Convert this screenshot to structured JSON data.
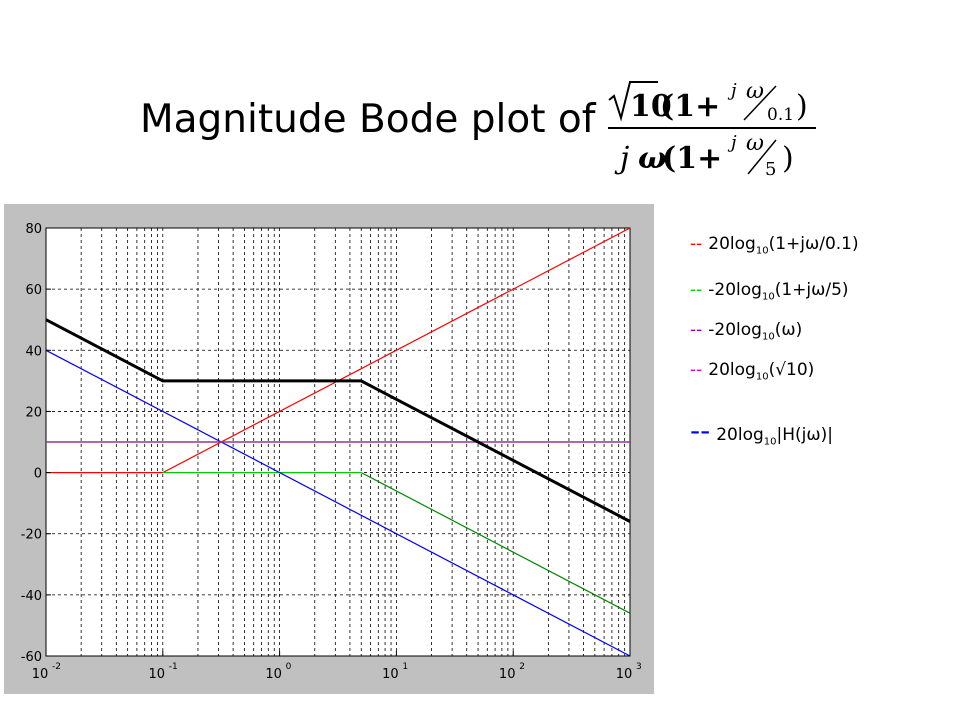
{
  "slide": {
    "title": "Magnitude Bode plot of",
    "formula": {
      "sqrt_arg": "10",
      "num_open": "(1+",
      "num_close": ")",
      "zero_corner": "0.1",
      "den_open": "(1+",
      "den_close": ")",
      "pole_corner": "5",
      "j": "j",
      "omega": "ω"
    }
  },
  "legend": {
    "items": [
      {
        "dash": "--",
        "prefix": "20log",
        "sub": "10",
        "suffix": "(1+jω/0.1)",
        "color": "#ff0000"
      },
      {
        "dash": "--",
        "prefix": "-20log",
        "sub": "10",
        "suffix": "(1+jω/5)",
        "color": "#00cc00"
      },
      {
        "dash": "--",
        "prefix": "-20log",
        "sub": "10",
        "suffix": "(ω)",
        "color": "#9900cc"
      },
      {
        "dash": "--",
        "prefix": "20log",
        "sub": "10",
        "suffix": "(√10)",
        "color": "#cc00cc"
      },
      {
        "dash": "--",
        "prefix": "20log",
        "sub": "10",
        "suffix": "|H(jω)|",
        "color": "#0000ff"
      }
    ]
  },
  "chart_data": {
    "type": "line",
    "x_scale": "log",
    "xlim": [
      0.01,
      1000
    ],
    "ylim": [
      -60,
      80
    ],
    "x_ticks": [
      {
        "base": "10",
        "exp": "-2",
        "value": 0.01
      },
      {
        "base": "10",
        "exp": "-1",
        "value": 0.1
      },
      {
        "base": "10",
        "exp": "0",
        "value": 1
      },
      {
        "base": "10",
        "exp": "1",
        "value": 10
      },
      {
        "base": "10",
        "exp": "2",
        "value": 100
      },
      {
        "base": "10",
        "exp": "3",
        "value": 1000
      }
    ],
    "y_ticks": [
      "-60",
      "-40",
      "-20",
      "0",
      "20",
      "40",
      "60",
      "80"
    ],
    "grid": true,
    "series": [
      {
        "color": "#ff0000",
        "width": 1.2,
        "x": [
          0.01,
          0.1,
          1000
        ],
        "y": [
          0,
          0,
          80
        ]
      },
      {
        "color": "#00cc00",
        "width": 1.2,
        "x": [
          0.1,
          5
        ],
        "y": [
          0,
          0
        ]
      },
      {
        "color": "#008800",
        "width": 1.2,
        "x": [
          5,
          1000
        ],
        "y": [
          0,
          -46
        ]
      },
      {
        "color": "#0000ff",
        "width": 1.2,
        "x": [
          0.01,
          1000
        ],
        "y": [
          40,
          -60
        ]
      },
      {
        "color": "#993399",
        "width": 1.6,
        "x": [
          0.01,
          1000
        ],
        "y": [
          10,
          10
        ]
      },
      {
        "color": "#000000",
        "width": 3,
        "x": [
          0.01,
          0.1,
          5,
          1000
        ],
        "y": [
          50,
          30,
          30,
          -16
        ]
      }
    ]
  }
}
